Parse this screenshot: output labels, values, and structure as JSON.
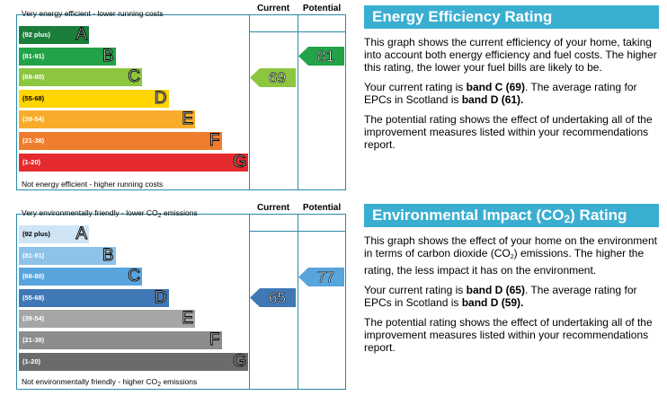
{
  "energy": {
    "chart": {
      "col_current": "Current",
      "col_potential": "Potential",
      "top_label": "Very energy efficient - lower running costs",
      "bottom_label": "Not energy efficient - higher running costs",
      "bands": [
        {
          "range": "(92 plus)",
          "letter": "A",
          "color": "#1a7e3a"
        },
        {
          "range": "(81-91)",
          "letter": "B",
          "color": "#23a348"
        },
        {
          "range": "(69-80)",
          "letter": "C",
          "color": "#8cc63f"
        },
        {
          "range": "(55-68)",
          "letter": "D",
          "color": "#ffd500"
        },
        {
          "range": "(39-54)",
          "letter": "E",
          "color": "#f7ac2b"
        },
        {
          "range": "(21-38)",
          "letter": "F",
          "color": "#ef7d2d"
        },
        {
          "range": "(1-20)",
          "letter": "G",
          "color": "#e52a2d"
        }
      ],
      "current": {
        "value": "69",
        "color": "#8cc63f"
      },
      "potential": {
        "value": "81",
        "color": "#23a348"
      }
    },
    "panel": {
      "title": "Energy Efficiency Rating",
      "p1": "This graph shows the current efficiency of your home, taking into account both energy efficiency and fuel costs. The higher this rating, the lower your fuel bills are likely to be.",
      "p2_a": "Your current rating is ",
      "p2_b": "band C (69)",
      "p2_c": ". The average rating for EPCs in Scotland is ",
      "p2_d": "band D (61).",
      "p3": "The potential rating shows the effect of undertaking all of the improvement measures listed within your recommendations report."
    }
  },
  "environment": {
    "chart": {
      "col_current": "Current",
      "col_potential": "Potential",
      "top_label_a": "Very environmentally friendly - lower CO",
      "top_label_sub": "2",
      "top_label_b": " emissions",
      "bottom_label_a": "Not environmentally friendly - higher CO",
      "bottom_label_sub": "2",
      "bottom_label_b": " emissions",
      "bands": [
        {
          "range": "(92 plus)",
          "letter": "A",
          "color": "#cfe4f5"
        },
        {
          "range": "(81-91)",
          "letter": "B",
          "color": "#8dc2e9"
        },
        {
          "range": "(69-80)",
          "letter": "C",
          "color": "#58a4dd"
        },
        {
          "range": "(55-68)",
          "letter": "D",
          "color": "#3f78b5"
        },
        {
          "range": "(39-54)",
          "letter": "E",
          "color": "#a6a6a6"
        },
        {
          "range": "(21-38)",
          "letter": "F",
          "color": "#8c8c8c"
        },
        {
          "range": "(1-20)",
          "letter": "G",
          "color": "#6b6b6b"
        }
      ],
      "current": {
        "value": "65",
        "color": "#3f78b5"
      },
      "potential": {
        "value": "77",
        "color": "#58a4dd"
      }
    },
    "panel": {
      "title_a": "Environmental Impact (CO",
      "title_sub": "2",
      "title_b": ") Rating",
      "p1_a": "This graph shows the effect of your home on the environment in terms of carbon dioxide (CO",
      "p1_sub": "2",
      "p1_b": ") emissions. The higher the rating, the less impact it has on the environment.",
      "p2_a": "Your current rating is ",
      "p2_b": "band D (65)",
      "p2_c": ". The average rating for EPCs in Scotland is ",
      "p2_d": "band D (59).",
      "p3": "The potential rating shows the effect of undertaking all of the improvement measures listed within your recommendations report."
    }
  }
}
